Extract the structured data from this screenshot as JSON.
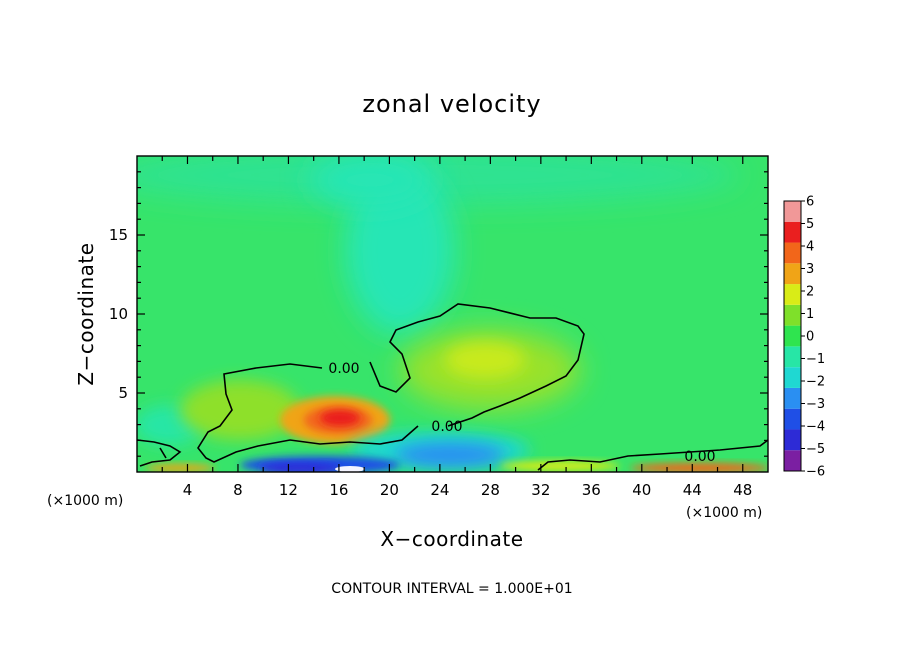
{
  "chart_data": {
    "type": "heatmap",
    "title": "zonal velocity",
    "xlabel": "X−coordinate",
    "ylabel": "Z−coordinate",
    "x_unit_left": "(×1000 m)",
    "x_unit_right": "(×1000 m)",
    "xlim": [
      0,
      50
    ],
    "ylim": [
      0,
      20
    ],
    "x_ticks": [
      4,
      8,
      12,
      16,
      20,
      24,
      28,
      32,
      36,
      40,
      44,
      48
    ],
    "x_tick_labels": [
      "4",
      "8",
      "12",
      "16",
      "20",
      "24",
      "28",
      "32",
      "36",
      "40",
      "44",
      "48"
    ],
    "y_ticks": [
      5,
      10,
      15
    ],
    "y_tick_labels": [
      "5",
      "10",
      "15"
    ],
    "colorbar": {
      "levels": [
        -6,
        -5,
        -4,
        -3,
        -2,
        -1,
        0,
        1,
        2,
        3,
        4,
        5,
        6
      ],
      "labels": [
        "−6",
        "−5",
        "−4",
        "−3",
        "−2",
        "−1",
        "0",
        "1",
        "2",
        "3",
        "4",
        "5",
        "6"
      ],
      "colors": [
        "#7b1fa2",
        "#2d2bd6",
        "#1f4fe6",
        "#2a8ff2",
        "#1fd8d2",
        "#27e6a6",
        "#2fe44f",
        "#7fe02a",
        "#d9ec17",
        "#f0a417",
        "#f2661a",
        "#ea1f1f",
        "#f19898"
      ]
    },
    "contour_labels": [
      "0.00",
      "0.00",
      "0.00"
    ],
    "note": "CONTOUR INTERVAL = 1.000E+01"
  }
}
